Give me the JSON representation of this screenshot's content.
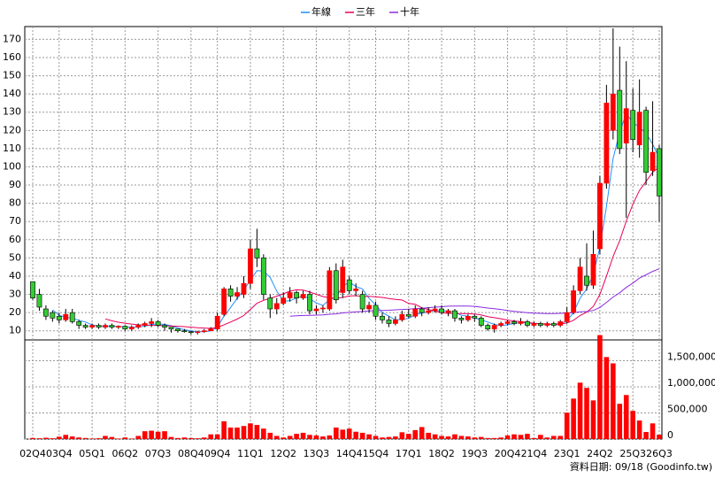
{
  "chart_data": {
    "type": "candlestick",
    "source": "資料日期: 09/18  (Goodinfo.tw)",
    "categories": [
      "02Q4",
      null,
      null,
      null,
      "03Q4",
      null,
      null,
      null,
      null,
      "05Q1",
      null,
      null,
      null,
      null,
      "06Q2",
      null,
      null,
      null,
      null,
      "07Q3",
      null,
      null,
      null,
      null,
      "08Q4",
      null,
      null,
      null,
      "09Q4",
      null,
      null,
      null,
      null,
      "11Q1",
      null,
      null,
      null,
      null,
      "12Q2",
      null,
      null,
      null,
      null,
      "13Q3",
      null,
      null,
      null,
      null,
      "14Q4",
      null,
      null,
      null,
      "15Q4",
      null,
      null,
      null,
      null,
      "17Q1",
      null,
      null,
      null,
      null,
      "18Q2",
      null,
      null,
      null,
      null,
      "19Q3",
      null,
      null,
      null,
      null,
      "20Q4",
      null,
      null,
      null,
      "21Q4",
      null,
      null,
      null,
      null,
      "23Q1",
      null,
      null,
      null,
      null,
      "24Q2",
      null,
      null,
      null,
      null,
      "25Q3",
      null,
      null,
      null,
      "26Q3"
    ],
    "open": [
      37,
      30,
      22,
      20,
      18,
      16,
      20,
      15,
      13,
      12,
      13,
      12,
      13,
      12,
      12.5,
      11,
      12,
      13,
      14,
      15,
      13,
      12,
      11,
      10,
      9.5,
      9,
      9.5,
      10,
      11,
      19,
      33,
      29,
      30,
      36,
      55,
      50,
      28,
      22,
      25,
      28,
      31,
      28,
      30,
      21,
      22,
      22,
      43,
      31,
      38,
      32,
      30,
      22,
      24,
      18,
      16,
      14,
      16,
      19,
      18,
      22,
      20,
      21,
      22,
      20,
      21,
      17,
      16,
      18,
      17,
      13,
      11,
      13,
      14,
      15,
      14,
      15,
      13,
      14,
      13,
      14,
      13,
      15,
      20,
      32,
      40,
      35,
      55,
      91,
      120,
      142,
      113,
      131,
      112,
      131,
      98,
      110
    ],
    "high": [
      37,
      33,
      24,
      21,
      20,
      22,
      22,
      16,
      14,
      14,
      14,
      14,
      14,
      13,
      13,
      13,
      14,
      15,
      17,
      16,
      14,
      12,
      11,
      11,
      10,
      10,
      11,
      12,
      20,
      34,
      35,
      34,
      40,
      60,
      66,
      52,
      30,
      28,
      31,
      34,
      32,
      32,
      32,
      24,
      24,
      45,
      47,
      49,
      40,
      36,
      32,
      26,
      26,
      20,
      18,
      18,
      21,
      22,
      24,
      23,
      23,
      24,
      24,
      22,
      22,
      18,
      19,
      19,
      18,
      14,
      14,
      15,
      16,
      16,
      17,
      16,
      15,
      15,
      15,
      15,
      16,
      23,
      35,
      50,
      58,
      65,
      95,
      145,
      176,
      166,
      158,
      143,
      148,
      133,
      136,
      112
    ],
    "low": [
      27,
      21,
      16,
      15,
      14,
      15,
      14,
      11,
      11,
      11,
      11,
      11,
      11,
      11,
      10,
      10,
      11,
      12,
      12,
      12,
      10,
      9,
      9,
      9,
      8,
      8,
      9,
      10,
      10,
      18,
      26,
      27,
      28,
      33,
      45,
      27,
      17,
      19,
      24,
      26,
      25,
      27,
      19,
      19,
      20,
      21,
      25,
      28,
      30,
      29,
      20,
      20,
      16,
      14,
      12,
      13,
      15,
      17,
      17,
      18,
      19,
      20,
      19,
      18,
      15,
      14,
      15,
      15,
      12,
      10,
      9,
      12,
      13,
      13,
      13,
      12,
      12,
      12,
      12,
      12,
      12,
      14,
      19,
      30,
      32,
      33,
      52,
      88,
      115,
      107,
      72,
      108,
      105,
      90,
      95,
      70
    ],
    "close": [
      28,
      23,
      18,
      17,
      16,
      19,
      15,
      13,
      12,
      13,
      12,
      13,
      12,
      12.5,
      11,
      12,
      13,
      14,
      15,
      13,
      12,
      11,
      10,
      9.5,
      9,
      9.5,
      10,
      11,
      18,
      33,
      29,
      31,
      36,
      55,
      50,
      30,
      22,
      25,
      28,
      31,
      28,
      30,
      21,
      22,
      22.5,
      43,
      27,
      45,
      32,
      33,
      22,
      24,
      18,
      16,
      14,
      16,
      19,
      18,
      22,
      20,
      21,
      22,
      20,
      21,
      17,
      16,
      18,
      17,
      13,
      11,
      13,
      14,
      15,
      14,
      15,
      13,
      14,
      13,
      14,
      13,
      15,
      20,
      32,
      45,
      35,
      52,
      91,
      135,
      140,
      110,
      132,
      115,
      130,
      97,
      108,
      84
    ],
    "up_color": "#ff0000",
    "down_color": "#33cc33",
    "ylim": [
      5,
      177
    ],
    "yticks": [
      10,
      20,
      30,
      40,
      50,
      60,
      70,
      80,
      90,
      100,
      110,
      120,
      130,
      140,
      150,
      160,
      170
    ],
    "grid": true,
    "series": [
      {
        "name": "年線",
        "color": "#1e90ff",
        "values": [
          null,
          null,
          null,
          21.5,
          18.5,
          17.5,
          16.8,
          15.8,
          14.8,
          13.3,
          12.5,
          12.5,
          12.5,
          12.4,
          12.1,
          11.9,
          12.1,
          12.5,
          13.5,
          13.8,
          13.5,
          12.8,
          11.5,
          10.6,
          9.9,
          9.5,
          9.5,
          9.9,
          12.1,
          18,
          22.8,
          27.8,
          32.3,
          37.8,
          43,
          42.8,
          39.3,
          31.8,
          26.3,
          26.5,
          28,
          29.3,
          27.5,
          25.3,
          23.9,
          27.1,
          28.6,
          34.4,
          36.8,
          34.3,
          33,
          27.8,
          24.3,
          20,
          18,
          16,
          16.3,
          16.8,
          18.8,
          19.8,
          20.3,
          21.3,
          20.8,
          21,
          20,
          18.5,
          18,
          17,
          16,
          14.8,
          13.5,
          12.8,
          13.3,
          14,
          14.5,
          14.3,
          14,
          13.8,
          13.5,
          13.5,
          13.8,
          15.5,
          20,
          28,
          33,
          41,
          55.8,
          78.3,
          104.5,
          119,
          129.3,
          124.3,
          121.8,
          118.5,
          112.5,
          104.8
        ]
      },
      {
        "name": "三年",
        "color": "#e8005a",
        "values": [
          null,
          null,
          null,
          null,
          null,
          null,
          null,
          null,
          null,
          null,
          null,
          16.5,
          15.5,
          14.7,
          14.2,
          13.7,
          13.3,
          13.1,
          13.0,
          12.9,
          12.8,
          12.7,
          12.5,
          12.3,
          12.0,
          11.7,
          11.5,
          11.3,
          11.8,
          13.3,
          14.8,
          16.4,
          18.4,
          21.7,
          25.1,
          26.7,
          27.8,
          29.0,
          30.3,
          31.7,
          32.5,
          32.3,
          31.3,
          30.0,
          28.8,
          28.1,
          27.8,
          28.3,
          29.1,
          29.3,
          28.8,
          28.9,
          28.6,
          28.3,
          27.7,
          27.2,
          26.9,
          25.0,
          24.6,
          22.6,
          21.7,
          20.8,
          19.9,
          19.6,
          19.5,
          19.5,
          19.4,
          19.2,
          18.7,
          17.8,
          17.2,
          16.6,
          15.9,
          15.4,
          15.1,
          14.5,
          14.2,
          13.9,
          13.7,
          13.5,
          13.7,
          14.3,
          15.8,
          18.4,
          20.2,
          23.4,
          29.9,
          40.1,
          50.7,
          59.5,
          70.1,
          79.5,
          87,
          92,
          97,
          100
        ]
      },
      {
        "name": "十年",
        "color": "#8a2be2",
        "values": [
          null,
          null,
          null,
          null,
          null,
          null,
          null,
          null,
          null,
          null,
          null,
          null,
          null,
          null,
          null,
          null,
          null,
          null,
          null,
          null,
          null,
          null,
          null,
          null,
          null,
          null,
          null,
          null,
          null,
          null,
          null,
          null,
          null,
          null,
          null,
          null,
          null,
          null,
          null,
          18.0,
          18.2,
          18.4,
          18.5,
          18.6,
          18.7,
          19.1,
          19.3,
          19.8,
          20.1,
          20.4,
          20.6,
          20.9,
          21.1,
          21.2,
          21.3,
          21.5,
          21.7,
          21.9,
          22.2,
          22.4,
          22.7,
          23.0,
          23.2,
          23.5,
          23.6,
          23.6,
          23.6,
          23.4,
          23.0,
          22.5,
          22.1,
          21.7,
          21.2,
          20.7,
          20.3,
          19.9,
          19.7,
          19.6,
          19.5,
          19.5,
          19.6,
          19.7,
          20.0,
          20.4,
          20.6,
          21.2,
          22.8,
          25.6,
          28.5,
          30.9,
          33.8,
          36.2,
          38.9,
          40.7,
          42.6,
          44.0
        ]
      }
    ],
    "volume": {
      "color": "#ff0000",
      "ylim": [
        0,
        2000000
      ],
      "yticks": [
        0,
        {
          "value": 500000,
          "label": "500,000"
        },
        {
          "value": 1000000,
          "label": "1,000,000"
        },
        {
          "value": 1500000,
          "label": "1,500,000"
        }
      ],
      "values": [
        20000,
        15000,
        25000,
        15000,
        45000,
        80000,
        50000,
        30000,
        20000,
        10000,
        15000,
        60000,
        40000,
        10000,
        30000,
        10000,
        60000,
        150000,
        160000,
        140000,
        150000,
        40000,
        20000,
        30000,
        20000,
        15000,
        30000,
        90000,
        90000,
        340000,
        220000,
        220000,
        250000,
        300000,
        270000,
        200000,
        120000,
        60000,
        30000,
        60000,
        100000,
        120000,
        80000,
        70000,
        50000,
        70000,
        220000,
        180000,
        200000,
        140000,
        120000,
        90000,
        60000,
        30000,
        40000,
        50000,
        130000,
        100000,
        170000,
        230000,
        120000,
        90000,
        60000,
        50000,
        90000,
        60000,
        50000,
        30000,
        40000,
        20000,
        20000,
        30000,
        70000,
        90000,
        80000,
        100000,
        20000,
        80000,
        30000,
        60000,
        60000,
        505000,
        775000,
        1080000,
        980000,
        740000,
        1990000,
        1570000,
        1450000,
        675000,
        843000,
        540000,
        355000,
        135000,
        300000,
        85000
      ]
    }
  }
}
